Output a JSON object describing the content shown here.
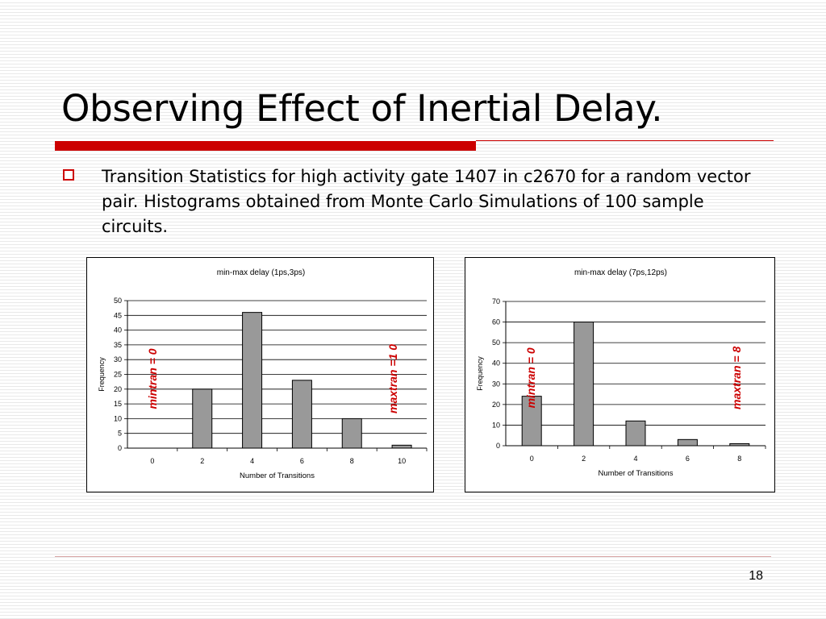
{
  "slide": {
    "title": "Observing Effect of Inertial Delay.",
    "bullet": "Transition Statistics for high activity gate 1407 in c2670 for a random vector pair. Histograms obtained from Monte Carlo Simulations of 100 sample circuits.",
    "page_number": "18",
    "accent_color": "#cc0000"
  },
  "chart_data": [
    {
      "type": "bar",
      "title": "min-max delay (1ps,3ps)",
      "xlabel": "Number of Transitions",
      "ylabel": "Frequency",
      "categories": [
        "0",
        "2",
        "4",
        "6",
        "8",
        "10"
      ],
      "values": [
        0,
        20,
        46,
        23,
        10,
        1
      ],
      "ylim": [
        0,
        50
      ],
      "yticks": [
        0,
        5,
        10,
        15,
        20,
        25,
        30,
        35,
        40,
        45,
        50
      ],
      "grid": true,
      "bar_color": "#999999",
      "annotations": [
        {
          "text": "mintran = 0",
          "near_category": "0",
          "color": "#cc0000"
        },
        {
          "text": "maxtran =1 0",
          "near_category": "10",
          "color": "#cc0000"
        }
      ]
    },
    {
      "type": "bar",
      "title": "min-max delay (7ps,12ps)",
      "xlabel": "Number of Transitions",
      "ylabel": "Frequency",
      "categories": [
        "0",
        "2",
        "4",
        "6",
        "8"
      ],
      "values": [
        24,
        60,
        12,
        3,
        1
      ],
      "ylim": [
        0,
        70
      ],
      "yticks": [
        0,
        10,
        20,
        30,
        40,
        50,
        60,
        70
      ],
      "grid": true,
      "bar_color": "#999999",
      "annotations": [
        {
          "text": "mintran = 0",
          "near_category": "2",
          "color": "#cc0000"
        },
        {
          "text": "maxtran = 8",
          "near_category": "8",
          "color": "#cc0000"
        }
      ]
    }
  ]
}
